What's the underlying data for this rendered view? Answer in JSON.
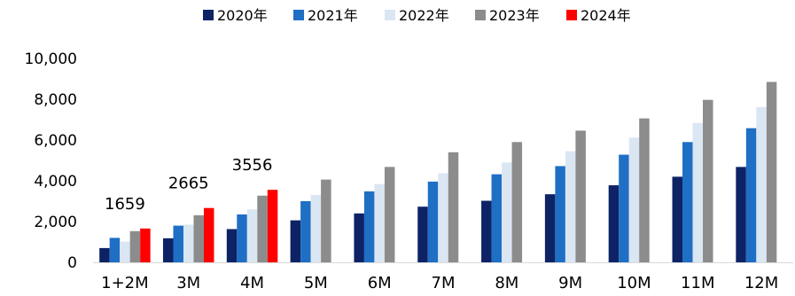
{
  "chart_data": {
    "type": "bar",
    "title": "",
    "xlabel": "",
    "ylabel": "",
    "ylim": [
      0,
      10000
    ],
    "yticks": [
      0,
      2000,
      4000,
      6000,
      8000,
      10000
    ],
    "ytick_labels": [
      "0",
      "2,000",
      "4,000",
      "6,000",
      "8,000",
      "10,000"
    ],
    "grid": false,
    "legend_position": "top",
    "categories": [
      "1+2M",
      "3M",
      "4M",
      "5M",
      "6M",
      "7M",
      "8M",
      "9M",
      "10M",
      "11M",
      "12M"
    ],
    "series": [
      {
        "name": "2020年",
        "color": "#0d2366",
        "values": [
          700,
          1180,
          1630,
          2060,
          2400,
          2730,
          3020,
          3340,
          3780,
          4200,
          4680
        ]
      },
      {
        "name": "2021年",
        "color": "#1f6fc4",
        "values": [
          1200,
          1800,
          2350,
          3000,
          3480,
          3960,
          4320,
          4720,
          5280,
          5900,
          6580
        ]
      },
      {
        "name": "2022年",
        "color": "#dbe6f3",
        "values": [
          1020,
          1850,
          2600,
          3300,
          3840,
          4370,
          4900,
          5450,
          6120,
          6840,
          7620
        ]
      },
      {
        "name": "2023年",
        "color": "#8c8c8c",
        "values": [
          1530,
          2310,
          3270,
          4060,
          4680,
          5400,
          5900,
          6460,
          7060,
          7970,
          8850
        ]
      },
      {
        "name": "2024年",
        "color": "#ff0000",
        "values": [
          1659,
          2665,
          3556,
          null,
          null,
          null,
          null,
          null,
          null,
          null,
          null
        ]
      }
    ],
    "data_labels": [
      {
        "category_index": 0,
        "text": "1659"
      },
      {
        "category_index": 1,
        "text": "2665"
      },
      {
        "category_index": 2,
        "text": "3556"
      }
    ]
  }
}
